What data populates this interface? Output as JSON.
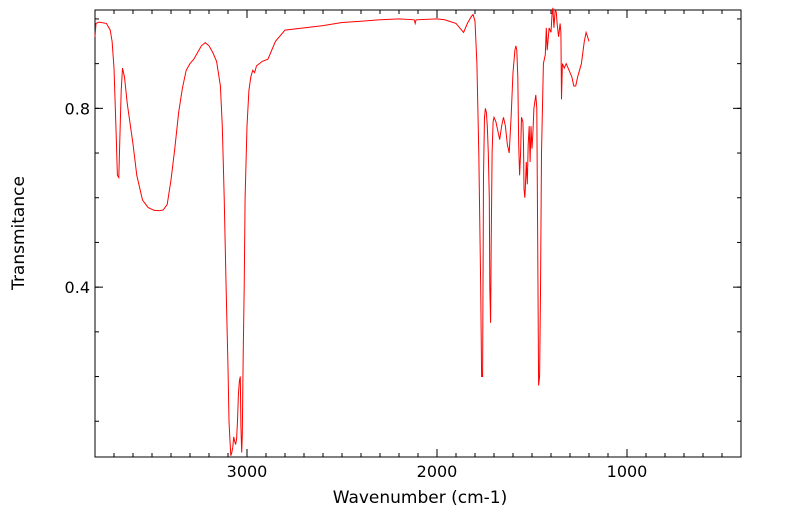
{
  "chart_data": {
    "type": "line",
    "title": "",
    "xlabel": "Wavenumber (cm-1)",
    "ylabel": "Transmitance",
    "xlim": [
      3800,
      400
    ],
    "ylim": [
      0.02,
      1.02
    ],
    "x_major_ticks": [
      3000,
      2000,
      1000
    ],
    "x_tick_labels": [
      "3000",
      "2000",
      "1000"
    ],
    "y_major_ticks": [
      0.4,
      0.8
    ],
    "y_tick_labels": [
      "0.4",
      "0.8"
    ],
    "grid": false,
    "series": [
      {
        "name": "spectrum",
        "color": "#ff0000",
        "points": [
          [
            3800,
            0.96
          ],
          [
            3795,
            0.99
          ],
          [
            3780,
            0.993
          ],
          [
            3740,
            0.99
          ],
          [
            3720,
            0.975
          ],
          [
            3710,
            0.95
          ],
          [
            3700,
            0.89
          ],
          [
            3690,
            0.76
          ],
          [
            3682,
            0.65
          ],
          [
            3675,
            0.645
          ],
          [
            3670,
            0.72
          ],
          [
            3662,
            0.84
          ],
          [
            3655,
            0.89
          ],
          [
            3645,
            0.87
          ],
          [
            3630,
            0.81
          ],
          [
            3600,
            0.72
          ],
          [
            3580,
            0.65
          ],
          [
            3550,
            0.595
          ],
          [
            3520,
            0.578
          ],
          [
            3490,
            0.572
          ],
          [
            3460,
            0.571
          ],
          [
            3440,
            0.573
          ],
          [
            3420,
            0.585
          ],
          [
            3400,
            0.64
          ],
          [
            3380,
            0.71
          ],
          [
            3360,
            0.79
          ],
          [
            3340,
            0.845
          ],
          [
            3320,
            0.885
          ],
          [
            3300,
            0.9
          ],
          [
            3280,
            0.91
          ],
          [
            3260,
            0.925
          ],
          [
            3240,
            0.94
          ],
          [
            3220,
            0.947
          ],
          [
            3200,
            0.94
          ],
          [
            3180,
            0.925
          ],
          [
            3160,
            0.905
          ],
          [
            3140,
            0.85
          ],
          [
            3130,
            0.76
          ],
          [
            3120,
            0.6
          ],
          [
            3110,
            0.4
          ],
          [
            3100,
            0.22
          ],
          [
            3095,
            0.1
          ],
          [
            3090,
            0.06
          ],
          [
            3085,
            0.023
          ],
          [
            3080,
            0.03
          ],
          [
            3075,
            0.042
          ],
          [
            3070,
            0.065
          ],
          [
            3065,
            0.055
          ],
          [
            3060,
            0.048
          ],
          [
            3055,
            0.06
          ],
          [
            3050,
            0.1
          ],
          [
            3045,
            0.16
          ],
          [
            3040,
            0.19
          ],
          [
            3035,
            0.2
          ],
          [
            3032,
            0.09
          ],
          [
            3028,
            0.03
          ],
          [
            3025,
            0.07
          ],
          [
            3020,
            0.25
          ],
          [
            3015,
            0.4
          ],
          [
            3010,
            0.6
          ],
          [
            3000,
            0.76
          ],
          [
            2990,
            0.84
          ],
          [
            2980,
            0.87
          ],
          [
            2970,
            0.885
          ],
          [
            2960,
            0.88
          ],
          [
            2950,
            0.895
          ],
          [
            2920,
            0.905
          ],
          [
            2890,
            0.91
          ],
          [
            2850,
            0.95
          ],
          [
            2800,
            0.975
          ],
          [
            2700,
            0.98
          ],
          [
            2600,
            0.985
          ],
          [
            2500,
            0.992
          ],
          [
            2400,
            0.995
          ],
          [
            2300,
            0.998
          ],
          [
            2200,
            1.0
          ],
          [
            2120,
            0.998
          ],
          [
            2115,
            0.99
          ],
          [
            2110,
            0.998
          ],
          [
            2000,
            1.0
          ],
          [
            1960,
            0.998
          ],
          [
            1900,
            0.99
          ],
          [
            1880,
            0.98
          ],
          [
            1860,
            0.97
          ],
          [
            1840,
            0.99
          ],
          [
            1820,
            1.005
          ],
          [
            1810,
            1.01
          ],
          [
            1800,
            0.995
          ],
          [
            1790,
            0.9
          ],
          [
            1780,
            0.7
          ],
          [
            1770,
            0.4
          ],
          [
            1765,
            0.2
          ],
          [
            1760,
            0.2
          ],
          [
            1755,
            0.65
          ],
          [
            1750,
            0.78
          ],
          [
            1745,
            0.8
          ],
          [
            1740,
            0.79
          ],
          [
            1735,
            0.76
          ],
          [
            1730,
            0.7
          ],
          [
            1725,
            0.6
          ],
          [
            1722,
            0.4
          ],
          [
            1718,
            0.32
          ],
          [
            1715,
            0.5
          ],
          [
            1710,
            0.7
          ],
          [
            1705,
            0.77
          ],
          [
            1700,
            0.78
          ],
          [
            1690,
            0.77
          ],
          [
            1680,
            0.75
          ],
          [
            1670,
            0.73
          ],
          [
            1660,
            0.76
          ],
          [
            1650,
            0.78
          ],
          [
            1640,
            0.76
          ],
          [
            1630,
            0.72
          ],
          [
            1620,
            0.7
          ],
          [
            1610,
            0.78
          ],
          [
            1600,
            0.88
          ],
          [
            1590,
            0.93
          ],
          [
            1585,
            0.94
          ],
          [
            1580,
            0.93
          ],
          [
            1575,
            0.87
          ],
          [
            1570,
            0.72
          ],
          [
            1565,
            0.65
          ],
          [
            1560,
            0.7
          ],
          [
            1555,
            0.78
          ],
          [
            1548,
            0.77
          ],
          [
            1545,
            0.72
          ],
          [
            1542,
            0.62
          ],
          [
            1538,
            0.6
          ],
          [
            1535,
            0.62
          ],
          [
            1530,
            0.68
          ],
          [
            1525,
            0.63
          ],
          [
            1520,
            0.72
          ],
          [
            1515,
            0.76
          ],
          [
            1510,
            0.68
          ],
          [
            1505,
            0.76
          ],
          [
            1500,
            0.71
          ],
          [
            1495,
            0.75
          ],
          [
            1490,
            0.8
          ],
          [
            1480,
            0.83
          ],
          [
            1475,
            0.8
          ],
          [
            1470,
            0.5
          ],
          [
            1465,
            0.18
          ],
          [
            1460,
            0.2
          ],
          [
            1455,
            0.39
          ],
          [
            1450,
            0.7
          ],
          [
            1440,
            0.9
          ],
          [
            1430,
            0.92
          ],
          [
            1425,
            0.98
          ],
          [
            1420,
            0.93
          ],
          [
            1410,
            0.98
          ],
          [
            1400,
            0.97
          ],
          [
            1395,
            1.01
          ],
          [
            1390,
            1.025
          ],
          [
            1385,
            0.98
          ],
          [
            1378,
            1.02
          ],
          [
            1372,
            1.015
          ],
          [
            1368,
            0.99
          ],
          [
            1360,
            0.96
          ],
          [
            1352,
            0.99
          ],
          [
            1348,
            0.97
          ],
          [
            1345,
            0.82
          ],
          [
            1340,
            0.9
          ],
          [
            1330,
            0.89
          ],
          [
            1320,
            0.9
          ],
          [
            1300,
            0.88
          ],
          [
            1290,
            0.87
          ],
          [
            1280,
            0.85
          ],
          [
            1270,
            0.85
          ],
          [
            1260,
            0.87
          ],
          [
            1240,
            0.9
          ],
          [
            1225,
            0.95
          ],
          [
            1215,
            0.97
          ],
          [
            1200,
            0.95
          ]
        ]
      }
    ]
  }
}
